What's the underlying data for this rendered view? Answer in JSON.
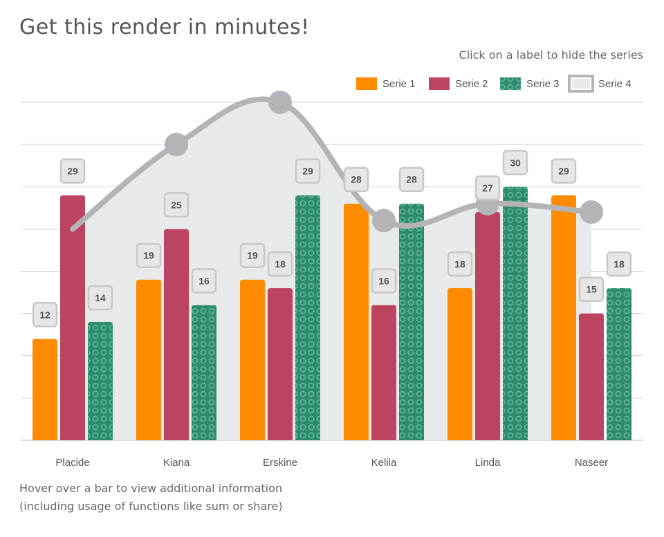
{
  "title": "Get this render in minutes!",
  "subtitle": "Click on a label to hide the series",
  "footnote": [
    "Hover over a bar to view additional information",
    "(including usage of functions like sum or share)"
  ],
  "colors": {
    "serie1": "#ff8c00",
    "serie2": "#bc4461",
    "serie3": "#2e8b6e",
    "serie4_line": "#b4b4b8",
    "serie4_area": "#e8e9ea",
    "grid": "#cfcfcf",
    "label_box": "#e6e6e6",
    "label_border": "#c8c8c8"
  },
  "legend": {
    "placement": "top-right",
    "items": [
      {
        "label": "Serie 1",
        "color": "#ff8c00",
        "pattern": "solid"
      },
      {
        "label": "Serie 2",
        "color": "#bc4461",
        "pattern": "solid"
      },
      {
        "label": "Serie 3",
        "color": "#2e8b6e",
        "pattern": "circles"
      },
      {
        "label": "Serie 4",
        "color": "#b4b4b8",
        "pattern": "area-line"
      }
    ]
  },
  "chart_data": {
    "type": "bar",
    "categories": [
      "Placide",
      "Kiana",
      "Erskine",
      "Kelila",
      "Linda",
      "Naseer"
    ],
    "series": [
      {
        "name": "Serie 1",
        "type": "bar",
        "values": [
          12,
          19,
          19,
          28,
          18,
          29
        ]
      },
      {
        "name": "Serie 2",
        "type": "bar",
        "values": [
          29,
          25,
          18,
          16,
          27,
          15
        ]
      },
      {
        "name": "Serie 3",
        "type": "bar",
        "values": [
          14,
          16,
          29,
          28,
          30,
          18
        ]
      },
      {
        "name": "Serie 4",
        "type": "area",
        "values": [
          25,
          35,
          40,
          26,
          28,
          27
        ]
      }
    ],
    "ylim": [
      0,
      40
    ],
    "grid": true,
    "yticks_shown": false,
    "xlabel": "",
    "ylabel": ""
  }
}
